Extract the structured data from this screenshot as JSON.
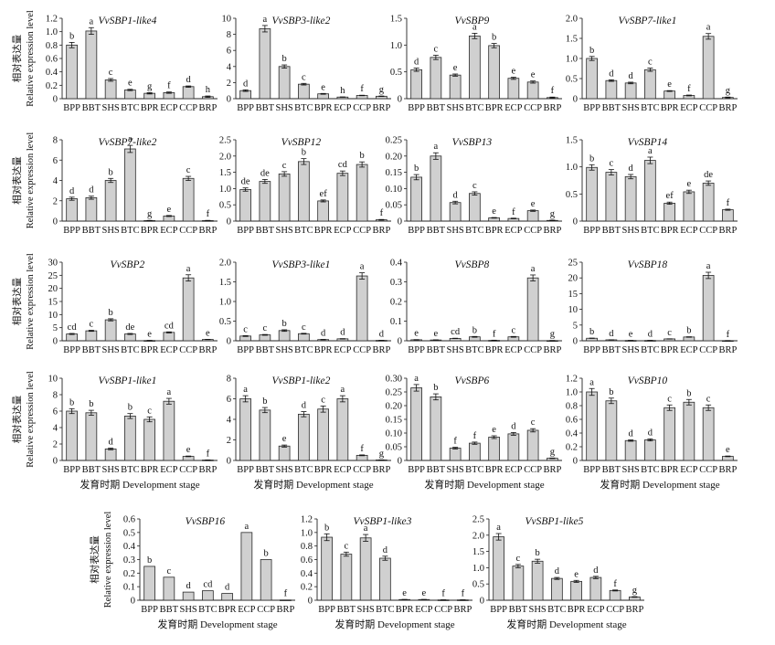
{
  "figure": {
    "ylabel_cn": "相对表达量",
    "ylabel_en": "Relative expression level",
    "xlabel": "发育时期 Development stage"
  },
  "chart_data": [
    {
      "type": "bar",
      "title": "VvSBP1-like4",
      "categories": [
        "BPP",
        "BBT",
        "SHS",
        "BTC",
        "BPR",
        "ECP",
        "CCP",
        "BRP"
      ],
      "values": [
        0.8,
        1.01,
        0.28,
        0.13,
        0.08,
        0.09,
        0.18,
        0.03
      ],
      "errors": [
        0.04,
        0.05,
        0.02,
        0.01,
        0.01,
        0.01,
        0.01,
        0.01
      ],
      "letters": [
        "b",
        "a",
        "c",
        "e",
        "g",
        "f",
        "d",
        "h"
      ],
      "ylim": [
        0,
        1.2
      ],
      "yticks": [
        "0",
        "0.2",
        "0.4",
        "0.6",
        "0.8",
        "1.0",
        "1.2"
      ],
      "ylabel": "Relative expression level",
      "xlabel": ""
    },
    {
      "type": "bar",
      "title": "VvSBP3-like2",
      "categories": [
        "BPP",
        "BBT",
        "SHS",
        "BTC",
        "BPR",
        "ECP",
        "CCP",
        "BRP"
      ],
      "values": [
        1.0,
        8.7,
        4.0,
        1.8,
        0.6,
        0.2,
        0.4,
        0.3
      ],
      "errors": [
        0.1,
        0.4,
        0.2,
        0.1,
        0.05,
        0.02,
        0.03,
        0.03
      ],
      "letters": [
        "d",
        "a",
        "b",
        "c",
        "e",
        "h",
        "f",
        "g"
      ],
      "ylim": [
        0,
        10
      ],
      "yticks": [
        "0",
        "2",
        "4",
        "6",
        "8",
        "10"
      ],
      "ylabel": "",
      "xlabel": ""
    },
    {
      "type": "bar",
      "title": "VvSBP9",
      "categories": [
        "BPP",
        "BBT",
        "SHS",
        "BTC",
        "BPR",
        "ECP",
        "CCP",
        "BRP"
      ],
      "values": [
        0.54,
        0.77,
        0.44,
        1.17,
        0.99,
        0.38,
        0.31,
        0.02
      ],
      "errors": [
        0.03,
        0.04,
        0.02,
        0.05,
        0.04,
        0.02,
        0.02,
        0.01
      ],
      "letters": [
        "d",
        "c",
        "e",
        "a",
        "b",
        "e",
        "e",
        "f"
      ],
      "ylim": [
        0,
        1.5
      ],
      "yticks": [
        "0",
        "0.5",
        "1.0",
        "1.5"
      ],
      "ylabel": "",
      "xlabel": ""
    },
    {
      "type": "bar",
      "title": "VvSBP7-like1",
      "categories": [
        "BPP",
        "BBT",
        "SHS",
        "BTC",
        "BPR",
        "ECP",
        "CCP",
        "BRP"
      ],
      "values": [
        1.0,
        0.45,
        0.39,
        0.72,
        0.19,
        0.08,
        1.55,
        0.03
      ],
      "errors": [
        0.05,
        0.02,
        0.02,
        0.04,
        0.01,
        0.01,
        0.07,
        0.01
      ],
      "letters": [
        "b",
        "d",
        "d",
        "c",
        "e",
        "f",
        "a",
        "g"
      ],
      "ylim": [
        0,
        2.0
      ],
      "yticks": [
        "0",
        "0.5",
        "1.0",
        "1.5",
        "2.0"
      ],
      "ylabel": "",
      "xlabel": ""
    },
    {
      "type": "bar",
      "title": "VvSBP7-like2",
      "categories": [
        "BPP",
        "BBT",
        "SHS",
        "BTC",
        "BPR",
        "ECP",
        "CCP",
        "BRP"
      ],
      "values": [
        2.2,
        2.3,
        4.0,
        7.1,
        0.05,
        0.5,
        4.2,
        0.05
      ],
      "errors": [
        0.15,
        0.15,
        0.2,
        0.35,
        0.02,
        0.05,
        0.2,
        0.02
      ],
      "letters": [
        "d",
        "d",
        "b",
        "a",
        "g",
        "e",
        "c",
        "f"
      ],
      "ylim": [
        0,
        8
      ],
      "yticks": [
        "0",
        "2",
        "4",
        "6",
        "8"
      ],
      "ylabel": "Relative expression level",
      "xlabel": ""
    },
    {
      "type": "bar",
      "title": "VvSBP12",
      "categories": [
        "BPP",
        "BBT",
        "SHS",
        "BTC",
        "BPR",
        "ECP",
        "CCP",
        "BRP"
      ],
      "values": [
        0.97,
        1.22,
        1.45,
        1.83,
        0.62,
        1.47,
        1.74,
        0.04
      ],
      "errors": [
        0.05,
        0.06,
        0.07,
        0.09,
        0.03,
        0.07,
        0.08,
        0.01
      ],
      "letters": [
        "de",
        "de",
        "c",
        "b",
        "ef",
        "cd",
        "b",
        "f"
      ],
      "ylim": [
        0,
        2.5
      ],
      "yticks": [
        "0",
        "0.5",
        "1.0",
        "1.5",
        "2.0",
        "2.5"
      ],
      "ylabel": "",
      "xlabel": ""
    },
    {
      "type": "bar",
      "title": "VvSBP13",
      "categories": [
        "BPP",
        "BBT",
        "SHS",
        "BTC",
        "BPR",
        "ECP",
        "CCP",
        "BRP"
      ],
      "values": [
        0.135,
        0.2,
        0.057,
        0.085,
        0.01,
        0.008,
        0.032,
        0.002
      ],
      "errors": [
        0.008,
        0.01,
        0.004,
        0.005,
        0.001,
        0.001,
        0.002,
        0.001
      ],
      "letters": [
        "b",
        "a",
        "d",
        "c",
        "e",
        "f",
        "e",
        "g"
      ],
      "ylim": [
        0,
        0.25
      ],
      "yticks": [
        "0",
        "0.05",
        "0.10",
        "0.15",
        "0.20",
        "0.25"
      ],
      "ylabel": "",
      "xlabel": ""
    },
    {
      "type": "bar",
      "title": "VvSBP14",
      "categories": [
        "BPP",
        "BBT",
        "SHS",
        "BTC",
        "BPR",
        "ECP",
        "CCP",
        "BRP"
      ],
      "values": [
        0.99,
        0.9,
        0.82,
        1.12,
        0.33,
        0.54,
        0.7,
        0.21
      ],
      "errors": [
        0.05,
        0.05,
        0.04,
        0.06,
        0.02,
        0.03,
        0.04,
        0.01
      ],
      "letters": [
        "b",
        "c",
        "d",
        "a",
        "ef",
        "e",
        "de",
        "f"
      ],
      "ylim": [
        0,
        1.5
      ],
      "yticks": [
        "0",
        "0.5",
        "1.0",
        "1.5"
      ],
      "ylabel": "",
      "xlabel": ""
    },
    {
      "type": "bar",
      "title": "VvSBP2",
      "categories": [
        "BPP",
        "BBT",
        "SHS",
        "BTC",
        "BPR",
        "ECP",
        "CCP",
        "BRP"
      ],
      "values": [
        2.6,
        3.8,
        8.0,
        2.6,
        0.1,
        3.2,
        24.0,
        0.5
      ],
      "errors": [
        0.2,
        0.2,
        0.4,
        0.2,
        0.05,
        0.2,
        1.2,
        0.05
      ],
      "letters": [
        "cd",
        "c",
        "b",
        "de",
        "e",
        "cd",
        "a",
        "e"
      ],
      "ylim": [
        0,
        30
      ],
      "yticks": [
        "0",
        "5",
        "10",
        "15",
        "20",
        "25",
        "30"
      ],
      "ylabel": "Relative expression level",
      "xlabel": ""
    },
    {
      "type": "bar",
      "title": "VvSBP3-like1",
      "categories": [
        "BPP",
        "BBT",
        "SHS",
        "BTC",
        "BPR",
        "ECP",
        "CCP",
        "BRP"
      ],
      "values": [
        0.12,
        0.15,
        0.26,
        0.18,
        0.03,
        0.05,
        1.65,
        0.01
      ],
      "errors": [
        0.01,
        0.01,
        0.02,
        0.01,
        0.005,
        0.005,
        0.08,
        0.002
      ],
      "letters": [
        "c",
        "c",
        "b",
        "c",
        "d",
        "d",
        "a",
        "d"
      ],
      "ylim": [
        0,
        2.0
      ],
      "yticks": [
        "0",
        "0.5",
        "1.0",
        "1.5",
        "2.0"
      ],
      "ylabel": "",
      "xlabel": ""
    },
    {
      "type": "bar",
      "title": "VvSBP8",
      "categories": [
        "BPP",
        "BBT",
        "SHS",
        "BTC",
        "BPR",
        "ECP",
        "CCP",
        "BRP"
      ],
      "values": [
        0.005,
        0.004,
        0.012,
        0.02,
        0.002,
        0.02,
        0.32,
        0.001
      ],
      "errors": [
        0.001,
        0.001,
        0.001,
        0.002,
        0.001,
        0.002,
        0.015,
        0.0005
      ],
      "letters": [
        "e",
        "e",
        "cd",
        "b",
        "f",
        "c",
        "a",
        "g"
      ],
      "ylim": [
        0,
        0.4
      ],
      "yticks": [
        "0",
        "0.1",
        "0.2",
        "0.3",
        "0.4"
      ],
      "ylabel": "",
      "xlabel": ""
    },
    {
      "type": "bar",
      "title": "VvSBP18",
      "categories": [
        "BPP",
        "BBT",
        "SHS",
        "BTC",
        "BPR",
        "ECP",
        "CCP",
        "BRP"
      ],
      "values": [
        0.8,
        0.3,
        0.1,
        0.1,
        0.6,
        1.2,
        20.8,
        0.05
      ],
      "errors": [
        0.05,
        0.03,
        0.01,
        0.01,
        0.04,
        0.08,
        1.0,
        0.01
      ],
      "letters": [
        "b",
        "d",
        "e",
        "d",
        "c",
        "b",
        "a",
        "f"
      ],
      "ylim": [
        0,
        25
      ],
      "yticks": [
        "0",
        "5",
        "10",
        "15",
        "20",
        "25"
      ],
      "ylabel": "",
      "xlabel": ""
    },
    {
      "type": "bar",
      "title": "VvSBP1-like1",
      "categories": [
        "BPP",
        "BBT",
        "SHS",
        "BTC",
        "BPR",
        "ECP",
        "CCP",
        "BRP"
      ],
      "values": [
        6.0,
        5.8,
        1.4,
        5.4,
        5.0,
        7.2,
        0.5,
        0.05
      ],
      "errors": [
        0.3,
        0.3,
        0.1,
        0.3,
        0.3,
        0.35,
        0.04,
        0.01
      ],
      "letters": [
        "b",
        "b",
        "d",
        "b",
        "c",
        "a",
        "e",
        "f"
      ],
      "ylim": [
        0,
        10
      ],
      "yticks": [
        "0",
        "2",
        "4",
        "6",
        "8",
        "10"
      ],
      "ylabel": "Relative expression level",
      "xlabel": "发育时期 Development stage"
    },
    {
      "type": "bar",
      "title": "VvSBP1-like2",
      "categories": [
        "BPP",
        "BBT",
        "SHS",
        "BTC",
        "BPR",
        "ECP",
        "CCP",
        "BRP"
      ],
      "values": [
        6.0,
        4.9,
        1.4,
        4.5,
        5.0,
        6.0,
        0.5,
        0.05
      ],
      "errors": [
        0.3,
        0.25,
        0.1,
        0.25,
        0.3,
        0.3,
        0.04,
        0.01
      ],
      "letters": [
        "a",
        "b",
        "e",
        "d",
        "c",
        "a",
        "f",
        "g"
      ],
      "ylim": [
        0,
        8
      ],
      "yticks": [
        "0",
        "2",
        "4",
        "6",
        "8"
      ],
      "ylabel": "",
      "xlabel": "发育时期 Development stage"
    },
    {
      "type": "bar",
      "title": "VvSBP6",
      "categories": [
        "BPP",
        "BBT",
        "SHS",
        "BTC",
        "BPR",
        "ECP",
        "CCP",
        "BRP"
      ],
      "values": [
        0.265,
        0.232,
        0.045,
        0.063,
        0.085,
        0.097,
        0.11,
        0.008
      ],
      "errors": [
        0.012,
        0.011,
        0.003,
        0.004,
        0.005,
        0.005,
        0.006,
        0.001
      ],
      "letters": [
        "a",
        "b",
        "f",
        "f",
        "e",
        "d",
        "c",
        "g"
      ],
      "ylim": [
        0,
        0.3
      ],
      "yticks": [
        "0",
        "0.05",
        "0.10",
        "0.15",
        "0.20",
        "0.25",
        "0.30"
      ],
      "ylabel": "",
      "xlabel": "发育时期 Development stage"
    },
    {
      "type": "bar",
      "title": "VvSBP10",
      "categories": [
        "BPP",
        "BBT",
        "SHS",
        "BTC",
        "BPR",
        "ECP",
        "CCP",
        "BRP"
      ],
      "values": [
        1.0,
        0.87,
        0.29,
        0.3,
        0.77,
        0.85,
        0.77,
        0.06
      ],
      "errors": [
        0.05,
        0.04,
        0.01,
        0.015,
        0.04,
        0.04,
        0.04,
        0.005
      ],
      "letters": [
        "a",
        "b",
        "d",
        "d",
        "c",
        "b",
        "c",
        "e"
      ],
      "ylim": [
        0,
        1.2
      ],
      "yticks": [
        "0",
        "0.2",
        "0.4",
        "0.6",
        "0.8",
        "1.0",
        "1.2"
      ],
      "ylabel": "",
      "xlabel": "发育时期 Development stage"
    },
    {
      "type": "bar",
      "title": "VvSBP16",
      "categories": [
        "BPP",
        "BBT",
        "SHS",
        "BTC",
        "BPR",
        "ECP",
        "CCP",
        "BRP"
      ],
      "values": [
        0.25,
        0.17,
        0.06,
        0.07,
        0.05,
        0.5,
        0.3,
        0.002
      ],
      "errors": [
        0,
        0,
        0,
        0,
        0,
        0,
        0,
        0
      ],
      "letters": [
        "b",
        "c",
        "d",
        "cd",
        "d",
        "a",
        "b",
        "f"
      ],
      "ylim": [
        0,
        0.6
      ],
      "yticks": [
        "0",
        "0.1",
        "0.2",
        "0.3",
        "0.4",
        "0.5",
        "0.6"
      ],
      "ylabel": "Relative expression level",
      "xlabel": "发育时期 Development stage"
    },
    {
      "type": "bar",
      "title": "VvSBP1-like3",
      "categories": [
        "BPP",
        "BBT",
        "SHS",
        "BTC",
        "BPR",
        "ECP",
        "CCP",
        "BRP"
      ],
      "values": [
        0.93,
        0.68,
        0.92,
        0.62,
        0.01,
        0.01,
        0.005,
        0.005
      ],
      "errors": [
        0.05,
        0.03,
        0.05,
        0.03,
        0.002,
        0.002,
        0.001,
        0.001
      ],
      "letters": [
        "b",
        "c",
        "a",
        "d",
        "e",
        "e",
        "f",
        "f"
      ],
      "ylim": [
        0,
        1.2
      ],
      "yticks": [
        "0",
        "0.2",
        "0.4",
        "0.6",
        "0.8",
        "1.0",
        "1.2"
      ],
      "ylabel": "",
      "xlabel": "发育时期 Development stage"
    },
    {
      "type": "bar",
      "title": "VvSBP1-like5",
      "categories": [
        "BPP",
        "BBT",
        "SHS",
        "BTC",
        "BPR",
        "ECP",
        "CCP",
        "BRP"
      ],
      "values": [
        1.95,
        1.05,
        1.2,
        0.67,
        0.58,
        0.7,
        0.3,
        0.1
      ],
      "errors": [
        0.1,
        0.05,
        0.06,
        0.03,
        0.03,
        0.035,
        0.015,
        0.01
      ],
      "letters": [
        "a",
        "c",
        "b",
        "d",
        "e",
        "d",
        "f",
        "g"
      ],
      "ylim": [
        0,
        2.5
      ],
      "yticks": [
        "0",
        "0.5",
        "1.0",
        "1.5",
        "2.0",
        "2.5"
      ],
      "ylabel": "",
      "xlabel": "发育时期 Development stage"
    }
  ]
}
